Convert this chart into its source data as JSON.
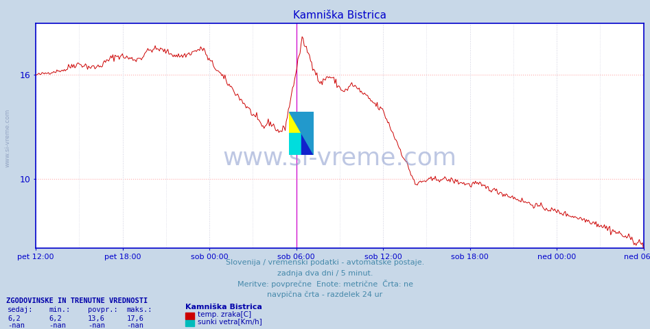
{
  "title": "Kamniška Bistrica",
  "title_color": "#0000cc",
  "fig_bg_color": "#c8d8e8",
  "plot_bg_color": "#ffffff",
  "axis_color": "#0000cc",
  "grid_color_h": "#ffaaaa",
  "grid_color_v": "#ccccdd",
  "line_color": "#cc0000",
  "vline_color": "#cc00cc",
  "ylabel_color": "#0000aa",
  "xlabel_color": "#0000aa",
  "text_color": "#4488aa",
  "legend_text_color": "#0000aa",
  "sidewater_color": "#8899bb",
  "watermark_color": "#8899cc",
  "ylim_min": 6.0,
  "ylim_max": 19.0,
  "yticks": [
    10,
    16
  ],
  "xtick_labels": [
    "pet 12:00",
    "pet 18:00",
    "sob 00:00",
    "sob 06:00",
    "sob 12:00",
    "sob 18:00",
    "ned 00:00",
    "ned 06:00"
  ],
  "watermark": "www.si-vreme.com",
  "subtitle1": "Slovenija / vremenski podatki - avtomatske postaje.",
  "subtitle2": "zadnja dva dni / 5 minut.",
  "subtitle3": "Meritve: povprečne  Enote: metrične  Črta: ne",
  "subtitle4": "navpična črta - razdelek 24 ur",
  "legend_title": "ZGODOVINSKE IN TRENUTNE VREDNOSTI",
  "legend_col_headers": [
    "sedaj:",
    "min.:",
    "povpr.:",
    "maks.:"
  ],
  "legend_vals_row1": [
    "6,2",
    "6,2",
    "13,6",
    "17,6"
  ],
  "legend_vals_row2": [
    "-nan",
    "-nan",
    "-nan",
    "-nan"
  ],
  "legend_station": "Kamniška Bistrica",
  "legend_label1": "temp. zraka[C]",
  "legend_label2": "sunki vetra[Km/h]",
  "legend_color1": "#cc0000",
  "legend_color2": "#00bbbb",
  "sidewater": "www.si-vreme.com",
  "n_points": 576,
  "figure_size": [
    9.47,
    4.8
  ],
  "dpi": 100
}
